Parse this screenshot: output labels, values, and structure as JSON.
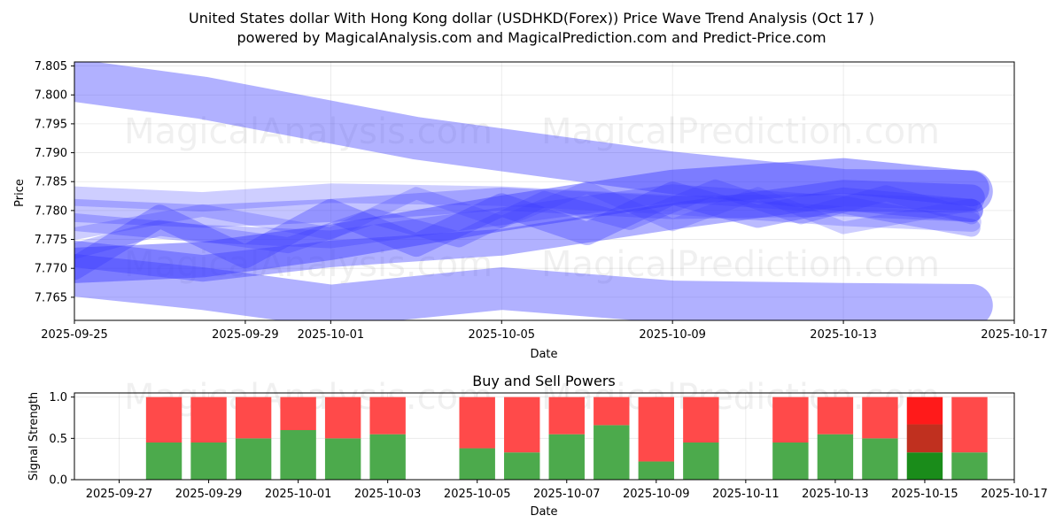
{
  "figure": {
    "title_line1": "United States dollar With Hong Kong dollar (USDHKD(Forex)) Price Wave Trend Analysis (Oct 17 )",
    "title_line2": "powered by MagicalAnalysis.com and MagicalPrediction.com and Predict-Price.com",
    "watermarks": [
      "MagicalAnalysis.com",
      "MagicalPrediction.com"
    ]
  },
  "colors": {
    "wave": "#3b3bff",
    "buy": "#4caa4c",
    "sell": "#ff4a4a",
    "buy_strong": "#1a8c1a",
    "sell_strong": "#ff1a1a",
    "sell_mid": "#c0301f"
  },
  "chart_data": [
    {
      "type": "line",
      "title": "",
      "xlabel": "Date",
      "ylabel": "Price",
      "xlim": [
        "2025-09-25",
        "2025-10-17"
      ],
      "ylim": [
        7.761,
        7.8057
      ],
      "x_ticks": [
        "2025-09-25",
        "2025-09-29",
        "2025-10-01",
        "2025-10-05",
        "2025-10-09",
        "2025-10-13",
        "2025-10-17"
      ],
      "y_ticks": [
        "7.765",
        "7.770",
        "7.775",
        "7.780",
        "7.785",
        "7.790",
        "7.795",
        "7.800",
        "7.805"
      ],
      "grid": true,
      "series": [
        {
          "x": [
            "2025-09-25",
            "2025-09-28",
            "2025-10-03",
            "2025-10-05",
            "2025-10-09",
            "2025-10-13",
            "2025-10-16"
          ],
          "y": [
            7.8025,
            7.7995,
            7.7925,
            7.7905,
            7.7865,
            7.7835,
            7.7833
          ],
          "width": 48,
          "opacity": 0.4
        },
        {
          "x": [
            "2025-09-25",
            "2025-09-28",
            "2025-10-01",
            "2025-10-05",
            "2025-10-09",
            "2025-10-13",
            "2025-10-16"
          ],
          "y": [
            7.7688,
            7.7665,
            7.7635,
            7.7665,
            7.7642,
            7.7638,
            7.7636
          ],
          "width": 48,
          "opacity": 0.4
        },
        {
          "x": [
            "2025-09-25",
            "2025-09-28",
            "2025-10-01",
            "2025-10-05",
            "2025-10-09",
            "2025-10-13",
            "2025-10-16"
          ],
          "y": [
            7.7705,
            7.7715,
            7.7745,
            7.7795,
            7.784,
            7.786,
            7.7838
          ],
          "width": 40,
          "opacity": 0.45
        },
        {
          "x": [
            "2025-09-25",
            "2025-09-28",
            "2025-10-01",
            "2025-10-05",
            "2025-10-09",
            "2025-10-13",
            "2025-10-16"
          ],
          "y": [
            7.7725,
            7.77,
            7.7725,
            7.7745,
            7.779,
            7.783,
            7.7822
          ],
          "width": 30,
          "opacity": 0.4
        },
        {
          "x": [
            "2025-09-25",
            "2025-09-27",
            "2025-09-29",
            "2025-10-01",
            "2025-10-03",
            "2025-10-05",
            "2025-10-07",
            "2025-10-09",
            "2025-10-11",
            "2025-10-13",
            "2025-10-16"
          ],
          "y": [
            7.77,
            7.779,
            7.772,
            7.78,
            7.774,
            7.781,
            7.776,
            7.783,
            7.779,
            7.782,
            7.78
          ],
          "width": 26,
          "opacity": 0.35
        },
        {
          "x": [
            "2025-09-25",
            "2025-09-28",
            "2025-10-01",
            "2025-10-05",
            "2025-10-09",
            "2025-10-13",
            "2025-10-16"
          ],
          "y": [
            7.78,
            7.779,
            7.78,
            7.782,
            7.7805,
            7.781,
            7.78
          ],
          "width": 26,
          "opacity": 0.3
        },
        {
          "x": [
            "2025-09-25",
            "2025-09-28",
            "2025-10-01",
            "2025-10-05",
            "2025-10-09",
            "2025-10-13",
            "2025-10-16"
          ],
          "y": [
            7.778,
            7.776,
            7.775,
            7.779,
            7.783,
            7.781,
            7.777
          ],
          "width": 20,
          "opacity": 0.3
        },
        {
          "x": [
            "2025-09-25",
            "2025-09-27",
            "2025-09-30",
            "2025-10-02",
            "2025-10-04",
            "2025-10-06",
            "2025-10-08",
            "2025-10-10",
            "2025-10-12",
            "2025-10-14",
            "2025-10-16"
          ],
          "y": [
            7.773,
            7.777,
            7.774,
            7.779,
            7.775,
            7.782,
            7.778,
            7.784,
            7.779,
            7.783,
            7.779
          ],
          "width": 18,
          "opacity": 0.3
        },
        {
          "x": [
            "2025-09-25",
            "2025-09-28",
            "2025-10-01",
            "2025-10-05",
            "2025-10-09",
            "2025-10-13",
            "2025-10-16"
          ],
          "y": [
            7.7825,
            7.7815,
            7.783,
            7.7825,
            7.781,
            7.779,
            7.778
          ],
          "width": 22,
          "opacity": 0.25
        },
        {
          "x": [
            "2025-09-25",
            "2025-09-28",
            "2025-10-01",
            "2025-10-03",
            "2025-10-05",
            "2025-10-07",
            "2025-10-09",
            "2025-10-11",
            "2025-10-13",
            "2025-10-16"
          ],
          "y": [
            7.776,
            7.78,
            7.776,
            7.783,
            7.778,
            7.784,
            7.7775,
            7.783,
            7.777,
            7.781
          ],
          "width": 14,
          "opacity": 0.25
        }
      ]
    },
    {
      "type": "bar",
      "title": "Buy and Sell Powers",
      "xlabel": "Date",
      "ylabel": "Signal Strength",
      "xlim": [
        "2025-09-26",
        "2025-10-17"
      ],
      "ylim": [
        0,
        1.05
      ],
      "x_ticks": [
        "2025-09-27",
        "2025-09-29",
        "2025-10-01",
        "2025-10-03",
        "2025-10-05",
        "2025-10-07",
        "2025-10-09",
        "2025-10-11",
        "2025-10-13",
        "2025-10-15",
        "2025-10-17"
      ],
      "y_ticks": [
        "0.0",
        "0.5",
        "1.0"
      ],
      "grid": true,
      "categories": [
        "2025-09-28",
        "2025-09-29",
        "2025-09-30",
        "2025-10-01",
        "2025-10-02",
        "2025-10-03",
        "2025-10-05",
        "2025-10-06",
        "2025-10-07",
        "2025-10-08",
        "2025-10-09",
        "2025-10-10",
        "2025-10-12",
        "2025-10-13",
        "2025-10-14",
        "2025-10-15",
        "2025-10-16"
      ],
      "series": [
        {
          "values": [
            0.45,
            0.45,
            0.5,
            0.6,
            0.5,
            0.55,
            0.38,
            0.33,
            0.55,
            0.66,
            0.22,
            0.45,
            0.45,
            0.55,
            0.5,
            0.33,
            0.33
          ]
        },
        {
          "values": [
            0.55,
            0.55,
            0.5,
            0.4,
            0.5,
            0.45,
            0.62,
            0.67,
            0.45,
            0.34,
            0.78,
            0.55,
            0.55,
            0.45,
            0.5,
            0.67,
            0.67
          ]
        }
      ],
      "highlight": {
        "category": "2025-10-15",
        "segments": [
          0.33,
          0.34,
          0.33
        ]
      }
    }
  ]
}
